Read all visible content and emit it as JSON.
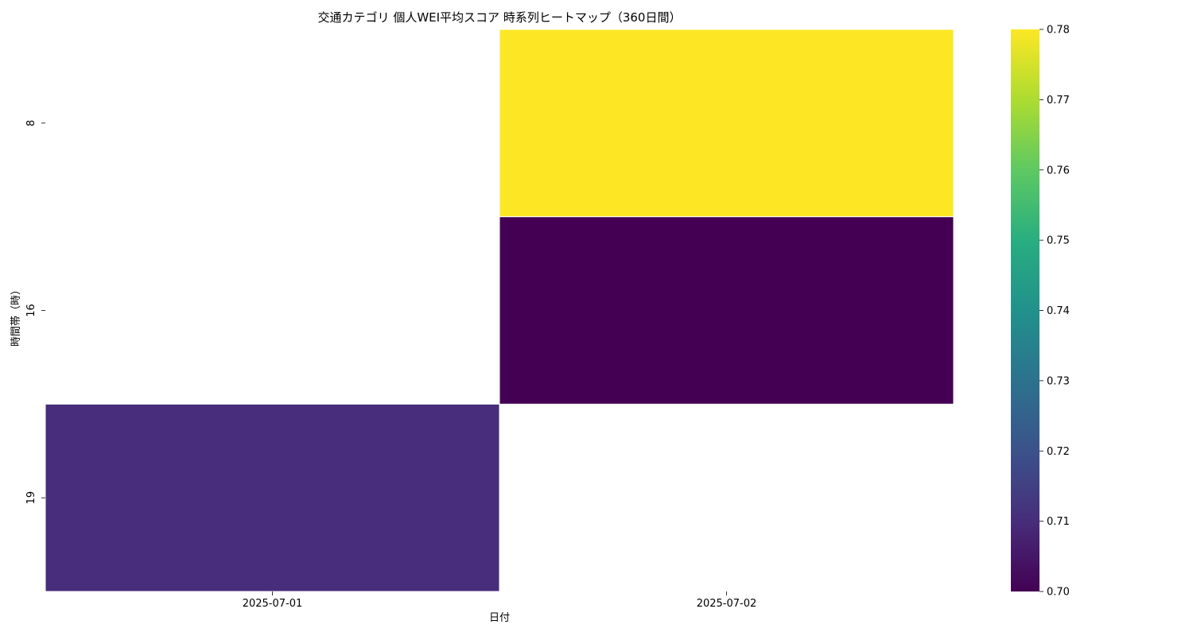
{
  "chart_data": {
    "type": "heatmap",
    "title": "交通カテゴリ 個人WEI平均スコア 時系列ヒートマップ（360日間）",
    "xlabel": "日付",
    "ylabel": "時間帯（時）",
    "x": [
      "2025-07-01",
      "2025-07-02"
    ],
    "y": [
      "8",
      "16",
      "19"
    ],
    "values": [
      [
        null,
        0.78
      ],
      [
        null,
        0.7
      ],
      [
        0.71,
        null
      ]
    ],
    "colorbar": {
      "colormap": "viridis",
      "min": 0.7,
      "max": 0.78,
      "ticks": [
        "0.70",
        "0.71",
        "0.72",
        "0.73",
        "0.74",
        "0.75",
        "0.76",
        "0.77",
        "0.78"
      ]
    },
    "grid": false,
    "cell_border_color": "#ffffff"
  }
}
